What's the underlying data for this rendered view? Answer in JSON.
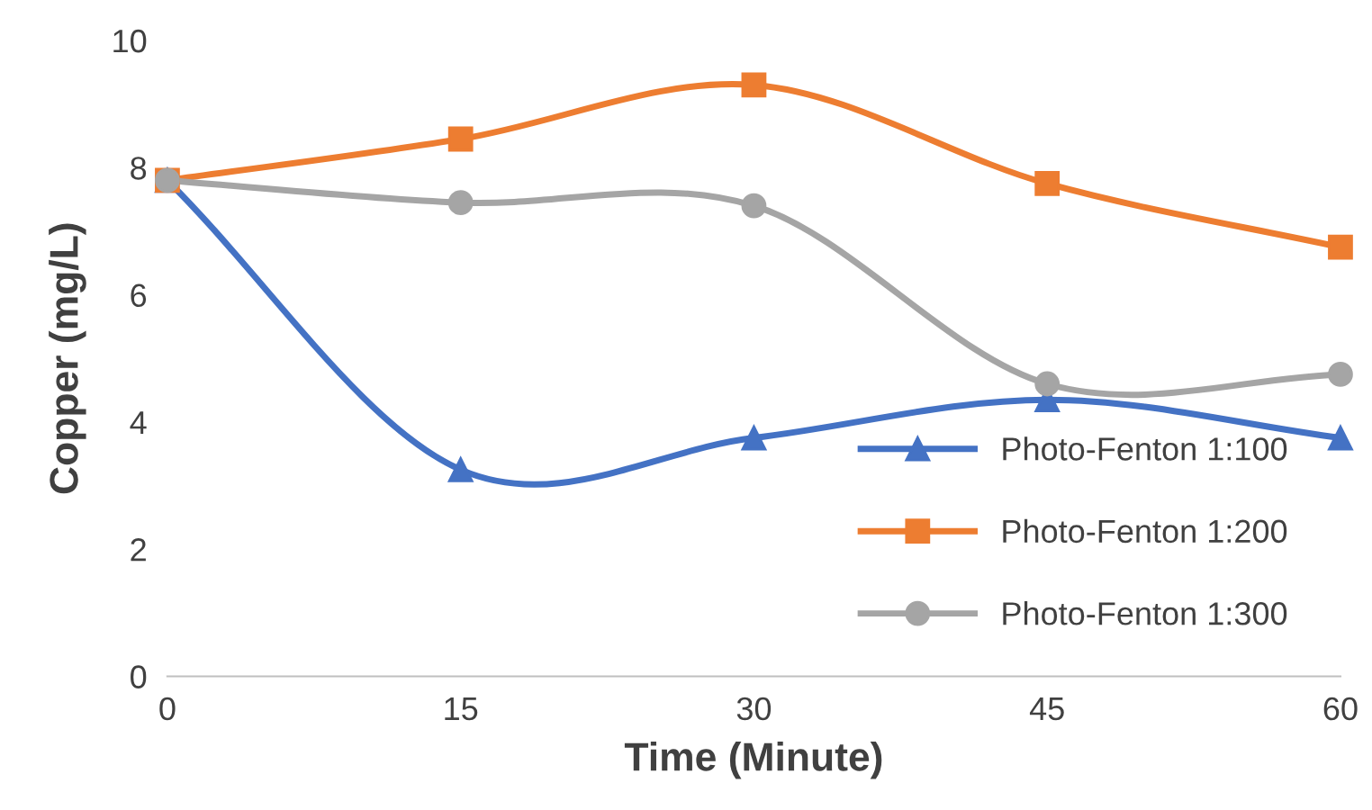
{
  "chart_data": {
    "type": "line",
    "xlabel": "Time (Minute)",
    "ylabel": "Copper (mg/L)",
    "x": [
      0,
      15,
      30,
      45,
      60
    ],
    "xlim": [
      0,
      60
    ],
    "xticks": [
      0,
      15,
      30,
      45,
      60
    ],
    "ylim": [
      0,
      10
    ],
    "yticks": [
      0,
      2,
      4,
      6,
      8,
      10
    ],
    "grid": false,
    "legend": "bottom right",
    "line_style": "solid",
    "series": [
      {
        "name": "Photo-Fenton 1:100",
        "color": "#4472c4",
        "marker": "triangle",
        "values": [
          7.8,
          3.25,
          3.75,
          4.35,
          3.75
        ]
      },
      {
        "name": "Photo-Fenton 1:200",
        "color": "#ed7d31",
        "marker": "square",
        "values": [
          7.8,
          8.45,
          9.3,
          7.75,
          6.75
        ]
      },
      {
        "name": "Photo-Fenton 1:300",
        "color": "#a5a5a5",
        "marker": "circle",
        "values": [
          7.8,
          7.45,
          7.4,
          4.6,
          4.75
        ]
      }
    ]
  }
}
